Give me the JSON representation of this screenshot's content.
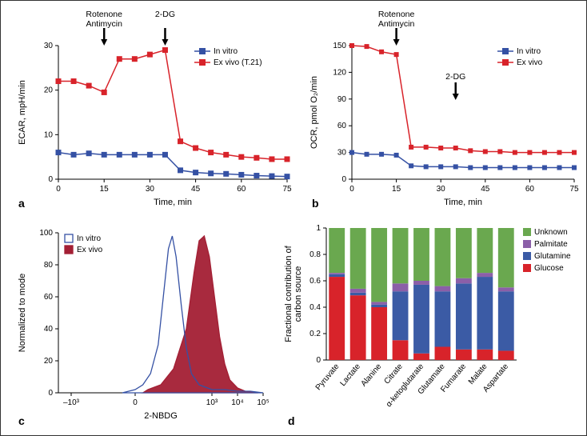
{
  "panel_a": {
    "type": "line",
    "label": "a",
    "injections": [
      {
        "label_line1": "Rotenone",
        "label_line2": "Antimycin",
        "x": 15
      },
      {
        "label_line1": "2-DG",
        "label_line2": "",
        "x": 35
      }
    ],
    "xlabel": "Time, min",
    "ylabel": "ECAR, mpH/min",
    "xlim": [
      0,
      75
    ],
    "xticks": [
      0,
      15,
      30,
      45,
      60,
      75
    ],
    "ylim": [
      0,
      30
    ],
    "yticks": [
      0,
      10,
      20,
      30
    ],
    "legend": [
      {
        "name": "In vitro",
        "color": "#3551a4"
      },
      {
        "name": "Ex vivo (T.21)",
        "color": "#d8232a"
      }
    ],
    "series": [
      {
        "color": "#3551a4",
        "marker": "square",
        "x": [
          0,
          5,
          10,
          15,
          20,
          25,
          30,
          35,
          40,
          45,
          50,
          55,
          60,
          65,
          70,
          75
        ],
        "y": [
          6,
          5.5,
          5.8,
          5.5,
          5.5,
          5.5,
          5.5,
          5.5,
          2,
          1.5,
          1.3,
          1.2,
          1,
          0.8,
          0.7,
          0.6
        ]
      },
      {
        "color": "#d8232a",
        "marker": "square",
        "x": [
          0,
          5,
          10,
          15,
          20,
          25,
          30,
          35,
          40,
          45,
          50,
          55,
          60,
          65,
          70,
          75
        ],
        "y": [
          22,
          22,
          21,
          19.5,
          27,
          27,
          28,
          29,
          8.5,
          7,
          6,
          5.5,
          5,
          4.8,
          4.5,
          4.5
        ]
      }
    ],
    "label_fontsize": 11,
    "tick_fontsize": 10,
    "background_color": "#ffffff"
  },
  "panel_b": {
    "type": "line",
    "label": "b",
    "injections": [
      {
        "label_line1": "Rotenone",
        "label_line2": "Antimycin",
        "x": 15
      },
      {
        "label_line1": "2-DG",
        "label_line2": "",
        "x": 35
      }
    ],
    "xlabel": "Time, min",
    "ylabel": "OCR, pmol O₂/min",
    "xlim": [
      0,
      75
    ],
    "xticks": [
      0,
      15,
      30,
      45,
      60,
      75
    ],
    "ylim": [
      0,
      150
    ],
    "yticks": [
      0,
      30,
      60,
      90,
      120,
      150
    ],
    "legend": [
      {
        "name": "In vitro",
        "color": "#3551a4"
      },
      {
        "name": "Ex vivo",
        "color": "#d8232a"
      }
    ],
    "series": [
      {
        "color": "#3551a4",
        "marker": "square",
        "x": [
          0,
          5,
          10,
          15,
          20,
          25,
          30,
          35,
          40,
          45,
          50,
          55,
          60,
          65,
          70,
          75
        ],
        "y": [
          30,
          28,
          28,
          27,
          15,
          14,
          14,
          14,
          13,
          13,
          13,
          13,
          13,
          13,
          13,
          13
        ]
      },
      {
        "color": "#d8232a",
        "marker": "square",
        "x": [
          0,
          5,
          10,
          15,
          20,
          25,
          30,
          35,
          40,
          45,
          50,
          55,
          60,
          65,
          70,
          75
        ],
        "y": [
          150,
          149,
          143,
          140,
          36,
          36,
          35,
          35,
          32,
          31,
          31,
          30,
          30,
          30,
          30,
          30
        ]
      }
    ],
    "label_fontsize": 11,
    "tick_fontsize": 10,
    "background_color": "#ffffff"
  },
  "panel_c": {
    "type": "histogram",
    "label": "c",
    "xlabel": "2-NBDG",
    "ylabel": "Normalized to mode",
    "xlim_log": [
      -3,
      5
    ],
    "xticks": [
      "–10³",
      "0",
      "10³",
      "10⁴",
      "10⁵"
    ],
    "ylim": [
      0,
      100
    ],
    "yticks": [
      0,
      20,
      40,
      60,
      80,
      100
    ],
    "legend": [
      {
        "name": "In vitro",
        "fill": "none",
        "stroke": "#3551a4"
      },
      {
        "name": "Ex vivo",
        "fill": "#a31f34",
        "stroke": "#a31f34"
      }
    ],
    "histograms": [
      {
        "fill": "#a31f34",
        "stroke": "#a31f34",
        "opacity": 0.95,
        "points": [
          [
            0.3,
            0
          ],
          [
            0.5,
            2
          ],
          [
            1.0,
            5
          ],
          [
            1.5,
            15
          ],
          [
            2.0,
            40
          ],
          [
            2.3,
            75
          ],
          [
            2.5,
            95
          ],
          [
            2.7,
            98
          ],
          [
            2.9,
            85
          ],
          [
            3.1,
            60
          ],
          [
            3.3,
            35
          ],
          [
            3.5,
            18
          ],
          [
            3.7,
            8
          ],
          [
            4.0,
            3
          ],
          [
            4.3,
            1
          ],
          [
            4.8,
            0
          ]
        ]
      },
      {
        "fill": "none",
        "stroke": "#3551a4",
        "opacity": 1,
        "points": [
          [
            -0.5,
            0
          ],
          [
            0,
            2
          ],
          [
            0.3,
            5
          ],
          [
            0.6,
            12
          ],
          [
            0.9,
            30
          ],
          [
            1.1,
            60
          ],
          [
            1.3,
            90
          ],
          [
            1.45,
            98
          ],
          [
            1.6,
            85
          ],
          [
            1.8,
            55
          ],
          [
            2.0,
            28
          ],
          [
            2.2,
            12
          ],
          [
            2.5,
            5
          ],
          [
            3.0,
            2
          ],
          [
            3.5,
            2
          ],
          [
            4.0,
            1
          ],
          [
            4.5,
            1
          ],
          [
            5.0,
            0
          ]
        ]
      }
    ],
    "label_fontsize": 11,
    "tick_fontsize": 10
  },
  "panel_d": {
    "type": "stacked-bar",
    "label": "d",
    "ylabel": "Fractional contribution of\ncarbon source",
    "ylim": [
      0,
      1
    ],
    "yticks": [
      0,
      0.2,
      0.4,
      0.6,
      0.8,
      1.0
    ],
    "categories": [
      "Pyruvate",
      "Lactate",
      "Alanine",
      "Citrate",
      "α-ketoglutarate",
      "Glutamate",
      "Fumarate",
      "Malate",
      "Aspartate"
    ],
    "legend": [
      {
        "name": "Unknown",
        "color": "#6aa84f"
      },
      {
        "name": "Palmitate",
        "color": "#8b5fa8"
      },
      {
        "name": "Glutamine",
        "color": "#3b5ba5"
      },
      {
        "name": "Glucose",
        "color": "#d8232a"
      }
    ],
    "stacks": [
      {
        "Glucose": 0.63,
        "Glutamine": 0.02,
        "Palmitate": 0.01,
        "Unknown": 0.34
      },
      {
        "Glucose": 0.49,
        "Glutamine": 0.02,
        "Palmitate": 0.03,
        "Unknown": 0.46
      },
      {
        "Glucose": 0.4,
        "Glutamine": 0.02,
        "Palmitate": 0.02,
        "Unknown": 0.56
      },
      {
        "Glucose": 0.15,
        "Glutamine": 0.37,
        "Palmitate": 0.06,
        "Unknown": 0.42
      },
      {
        "Glucose": 0.05,
        "Glutamine": 0.52,
        "Palmitate": 0.03,
        "Unknown": 0.4
      },
      {
        "Glucose": 0.1,
        "Glutamine": 0.42,
        "Palmitate": 0.04,
        "Unknown": 0.44
      },
      {
        "Glucose": 0.08,
        "Glutamine": 0.5,
        "Palmitate": 0.04,
        "Unknown": 0.38
      },
      {
        "Glucose": 0.08,
        "Glutamine": 0.55,
        "Palmitate": 0.03,
        "Unknown": 0.34
      },
      {
        "Glucose": 0.07,
        "Glutamine": 0.45,
        "Palmitate": 0.03,
        "Unknown": 0.45
      }
    ],
    "bar_width": 0.75,
    "label_fontsize": 11,
    "tick_fontsize": 10
  }
}
